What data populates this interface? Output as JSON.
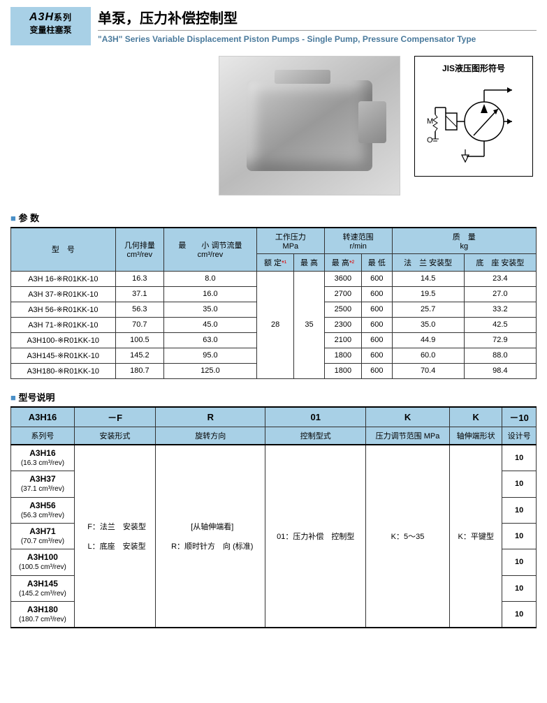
{
  "header": {
    "logo_series": "A3H",
    "logo_series_suffix": "系列",
    "logo_sub": "变量柱塞泵",
    "title_cn": "单泵，压力补偿控制型",
    "title_en": "\"A3H\" Series Variable Displacement Piston Pumps - Single Pump, Pressure Compensator Type"
  },
  "jis": {
    "title": "JIS液压图形符号",
    "M": "M",
    "O": "O"
  },
  "sections": {
    "params": "参 数",
    "model_desc": "型号说明"
  },
  "params": {
    "headers": {
      "model": "型　号",
      "displacement": "几何排量",
      "displacement_unit": "cm³/rev",
      "min_flow": "最　　小 调节流量",
      "min_flow_unit": "cm³/rev",
      "pressure": "工作压力",
      "pressure_unit": "MPa",
      "rated": "额 定",
      "max_p": "最 高",
      "speed": "转速范围",
      "speed_unit": "r/min",
      "max_s": "最 高",
      "min_s": "最 低",
      "mass": "质　量",
      "mass_unit": "kg",
      "flange": "法　兰 安装型",
      "foot": "底　座 安装型",
      "ast": "*¹",
      "ast2": "*²"
    },
    "shared": {
      "rated_pressure": "28",
      "max_pressure": "35"
    },
    "rows": [
      {
        "model": "A3H 16-※R01KK-10",
        "disp": "16.3",
        "minf": "8.0",
        "smax": "3600",
        "smin": "600",
        "fl": "14.5",
        "ft": "23.4"
      },
      {
        "model": "A3H 37-※R01KK-10",
        "disp": "37.1",
        "minf": "16.0",
        "smax": "2700",
        "smin": "600",
        "fl": "19.5",
        "ft": "27.0"
      },
      {
        "model": "A3H 56-※R01KK-10",
        "disp": "56.3",
        "minf": "35.0",
        "smax": "2500",
        "smin": "600",
        "fl": "25.7",
        "ft": "33.2"
      },
      {
        "model": "A3H 71-※R01KK-10",
        "disp": "70.7",
        "minf": "45.0",
        "smax": "2300",
        "smin": "600",
        "fl": "35.0",
        "ft": "42.5"
      },
      {
        "model": "A3H100-※R01KK-10",
        "disp": "100.5",
        "minf": "63.0",
        "smax": "2100",
        "smin": "600",
        "fl": "44.9",
        "ft": "72.9"
      },
      {
        "model": "A3H145-※R01KK-10",
        "disp": "145.2",
        "minf": "95.0",
        "smax": "1800",
        "smin": "600",
        "fl": "60.0",
        "ft": "88.0"
      },
      {
        "model": "A3H180-※R01KK-10",
        "disp": "180.7",
        "minf": "125.0",
        "smax": "1800",
        "smin": "600",
        "fl": "70.4",
        "ft": "98.4"
      }
    ]
  },
  "model": {
    "header_row": [
      "A3H16",
      "－F",
      "R",
      "01",
      "K",
      "K",
      "－10"
    ],
    "label_row": [
      "系列号",
      "安装形式",
      "旋转方向",
      "控制型式",
      "压力调节范围 MPa",
      "轴伸端形状",
      "设计号"
    ],
    "series": [
      {
        "code": "A3H16",
        "spec": "(16.3 cm³/rev)",
        "design": "10"
      },
      {
        "code": "A3H37",
        "spec": "(37.1 cm³/rev)",
        "design": "10"
      },
      {
        "code": "A3H56",
        "spec": "(56.3 cm³/rev)",
        "design": "10"
      },
      {
        "code": "A3H71",
        "spec": "(70.7 cm³/rev)",
        "design": "10"
      },
      {
        "code": "A3H100",
        "spec": "(100.5 cm³/rev)",
        "design": "10"
      },
      {
        "code": "A3H145",
        "spec": "(145.2 cm³/rev)",
        "design": "10"
      },
      {
        "code": "A3H180",
        "spec": "(180.7 cm³/rev)",
        "design": "10"
      }
    ],
    "mounting": "F：法兰　安装型\n\nL：底座　安装型",
    "rotation": "[从轴伸端看]\n\nR：顺时针方　向 (标准)",
    "control": "01：压力补偿　控制型",
    "pressure_range": "K：5～35",
    "shaft": "K：平键型"
  },
  "colors": {
    "header_bg": "#a8d0e6",
    "accent_blue": "#4a8fc7",
    "subtitle": "#4a7a9c"
  }
}
